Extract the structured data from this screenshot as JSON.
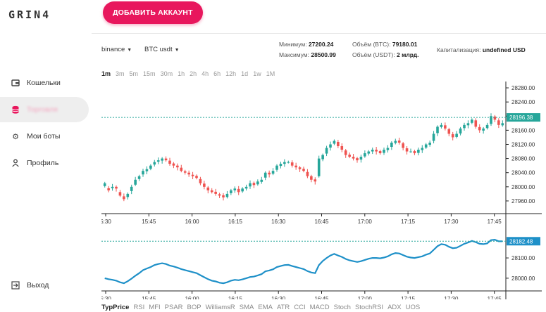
{
  "logo": "GRIN4",
  "sidebar": {
    "items": [
      {
        "label": "Кошельки",
        "icon": "wallet-icon"
      },
      {
        "label": "Торговля",
        "icon": "database-icon",
        "active": true
      },
      {
        "label": "Мои боты",
        "icon": "gear-icon"
      },
      {
        "label": "Профиль",
        "icon": "user-icon"
      }
    ],
    "logout": {
      "label": "Выход",
      "icon": "logout-icon"
    }
  },
  "header": {
    "add_account_label": "ДОБАВИТЬ АККАУНТ",
    "accent_color": "#e8175d"
  },
  "market": {
    "exchange": "binance",
    "pair": "BTC usdt",
    "min_label": "Минимум:",
    "min_value": "27200.24",
    "max_label": "Максимум:",
    "max_value": "28500.99",
    "vol_btc_label": "Объём (BTC):",
    "vol_btc_value": "79180.01",
    "vol_usdt_label": "Объём (USDT):",
    "vol_usdt_value": "2 млрд.",
    "cap_label": "Капитализация:",
    "cap_value": "undefined USD"
  },
  "timeframes": [
    "1m",
    "3m",
    "5m",
    "15m",
    "30m",
    "1h",
    "2h",
    "4h",
    "6h",
    "12h",
    "1d",
    "1w",
    "1M"
  ],
  "active_timeframe": "1m",
  "indicators": [
    "TypPrice",
    "RSI",
    "MFI",
    "PSAR",
    "BOP",
    "WilliamsR",
    "SMA",
    "EMA",
    "ATR",
    "CCI",
    "MACD",
    "Stoch",
    "StochRSI",
    "ADX",
    "UOS"
  ],
  "active_indicator": "TypPrice",
  "chart_data": [
    {
      "type": "candlestick",
      "x_ticks": [
        "5:30",
        "15:45",
        "16:00",
        "16:15",
        "16:30",
        "16:45",
        "17:00",
        "17:15",
        "17:30",
        "17:45"
      ],
      "y_ticks": [
        27960,
        28000,
        28040,
        28080,
        28120,
        28160,
        28200,
        28240,
        28280
      ],
      "ylim": [
        27940,
        28290
      ],
      "last_price": "28196.38",
      "up_color": "#26a69a",
      "down_color": "#ef5350",
      "close": [
        28010,
        27990,
        28000,
        27995,
        27975,
        27965,
        27980,
        28000,
        28020,
        28030,
        28045,
        28050,
        28060,
        28070,
        28075,
        28080,
        28075,
        28065,
        28060,
        28055,
        28045,
        28040,
        28035,
        28030,
        28025,
        28010,
        28000,
        27990,
        27985,
        27980,
        27975,
        27970,
        27980,
        27990,
        27995,
        27985,
        27995,
        28000,
        28010,
        28005,
        28015,
        28020,
        28040,
        28035,
        28045,
        28060,
        28065,
        28070,
        28070,
        28060,
        28055,
        28050,
        28045,
        28030,
        28020,
        28015,
        28080,
        28090,
        28110,
        28120,
        28130,
        28115,
        28105,
        28090,
        28085,
        28080,
        28075,
        28085,
        28095,
        28100,
        28105,
        28100,
        28095,
        28105,
        28110,
        28125,
        28130,
        28125,
        28110,
        28100,
        28100,
        28095,
        28105,
        28110,
        28120,
        28125,
        28150,
        28170,
        28175,
        28165,
        28150,
        28140,
        28150,
        28165,
        28175,
        28180,
        28190,
        28170,
        28160,
        28165,
        28175,
        28200,
        28190,
        28175,
        28180
      ],
      "open_offset": [
        -8,
        6,
        -4,
        5,
        10,
        8,
        -9,
        -12,
        -14,
        -8,
        -10,
        -6,
        -9,
        -7,
        -4,
        -6,
        5,
        9,
        6,
        5,
        9,
        4,
        5,
        4,
        6,
        12,
        9,
        8,
        5,
        6,
        4,
        6,
        -9,
        -8,
        -5,
        9,
        -8,
        -5,
        -9,
        6,
        -8,
        -6,
        -14,
        5,
        -8,
        -12,
        -6,
        -5,
        0,
        9,
        5,
        5,
        6,
        12,
        10,
        6,
        -50,
        -12,
        -16,
        -9,
        -8,
        12,
        10,
        13,
        6,
        5,
        6,
        -8,
        -9,
        -6,
        -5,
        5,
        6,
        -9,
        -6,
        -12,
        -6,
        6,
        13,
        9,
        0,
        6,
        -9,
        -6,
        -9,
        -6,
        -20,
        -18,
        -6,
        9,
        13,
        9,
        -9,
        -14,
        -9,
        -6,
        -9,
        18,
        9,
        -6,
        -9,
        -22,
        9,
        13,
        -6
      ],
      "typprice": [
        28000,
        27995,
        27992,
        27988,
        27980,
        27975,
        27985,
        27998,
        28012,
        28025,
        28040,
        28048,
        28055,
        28065,
        28070,
        28074,
        28070,
        28062,
        28058,
        28052,
        28045,
        28040,
        28035,
        28030,
        28025,
        28015,
        28005,
        27995,
        27988,
        27984,
        27978,
        27975,
        27980,
        27988,
        27992,
        27990,
        27994,
        28000,
        28006,
        28008,
        28014,
        28020,
        28034,
        28038,
        28044,
        28055,
        28060,
        28065,
        28066,
        28060,
        28055,
        28050,
        28045,
        28035,
        28028,
        28025,
        28065,
        28085,
        28100,
        28112,
        28120,
        28112,
        28105,
        28095,
        28088,
        28084,
        28080,
        28084,
        28090,
        28096,
        28100,
        28100,
        28098,
        28102,
        28108,
        28118,
        28124,
        28122,
        28114,
        28106,
        28102,
        28100,
        28104,
        28108,
        28116,
        28122,
        28140,
        28158,
        28168,
        28165,
        28155,
        28148,
        28150,
        28160,
        28170,
        28176,
        28184,
        28178,
        28170,
        28168,
        28172,
        28188,
        28190,
        28182,
        28182
      ],
      "typ_y_ticks": [
        28000,
        28100
      ],
      "typ_ylim": [
        27965,
        28225
      ],
      "typ_last": "28182.48"
    }
  ]
}
